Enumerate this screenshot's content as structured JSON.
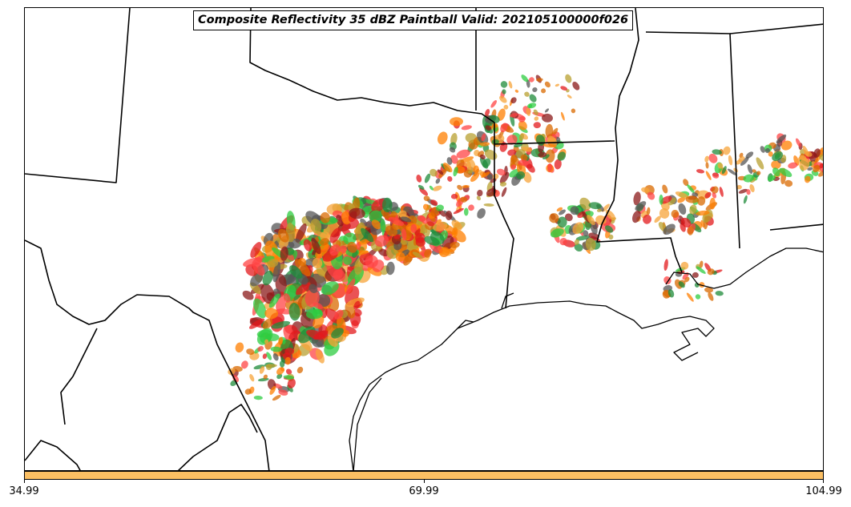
{
  "title": "Composite Reflectivity 35 dBZ Paintball Valid: 202105100000f026",
  "colorbar": {
    "color": "#fbbf63",
    "tick_labels": [
      "34.99",
      "69.99",
      "104.99"
    ]
  },
  "member_colors": [
    "#e31a1c",
    "#ff7f00",
    "#1f8b3a",
    "#2ecc40",
    "#8b1a1a",
    "#b8a030",
    "#555555",
    "#f7a43a",
    "#ff4444",
    "#d96a00"
  ],
  "map": {
    "region": "South-central United States",
    "boundaries": [
      "state-borders",
      "coastline",
      "mexico-border"
    ]
  }
}
